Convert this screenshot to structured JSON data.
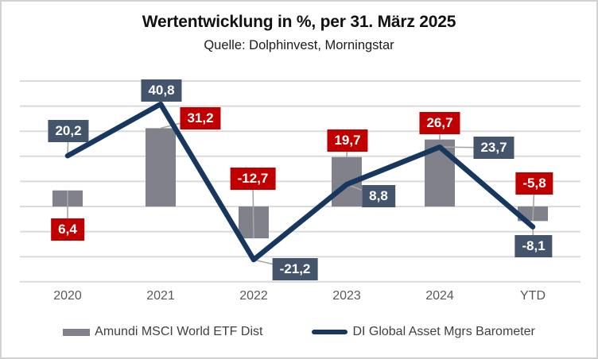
{
  "title": "Wertentwicklung in %, per 31. März 2025",
  "subtitle": "Quelle: Dolphinvest, Morningstar",
  "chart_data": {
    "type": "bar",
    "subtype": "bar-and-line-combo",
    "categories": [
      "2020",
      "2021",
      "2022",
      "2023",
      "2024",
      "YTD"
    ],
    "series": [
      {
        "name": "Amundi MSCI World ETF Dist",
        "type": "bar",
        "color": "#80818b",
        "label_bg": "#c00000",
        "values": [
          6.4,
          31.2,
          -12.7,
          19.7,
          26.7,
          -5.8
        ],
        "labels": [
          "6,4",
          "31,2",
          "-12,7",
          "19,7",
          "26,7",
          "-5,8"
        ]
      },
      {
        "name": "DI Global Asset Mgrs Barometer",
        "type": "line",
        "color": "#17375e",
        "label_bg": "#44546a",
        "values": [
          20.2,
          40.8,
          -21.2,
          8.8,
          23.7,
          -8.1
        ],
        "labels": [
          "20,2",
          "40,8",
          "-21,2",
          "8,8",
          "23,7",
          "-8,1"
        ]
      }
    ],
    "ylim": [
      -30,
      50
    ],
    "gridline_step": 10,
    "grid": "horizontal-only",
    "y_axis_labels_visible": false,
    "legend_position": "bottom",
    "decimal_separator": ","
  },
  "colors": {
    "bar_gray": "#80818b",
    "line_navy": "#17375e",
    "bar_label_red": "#c00000",
    "line_label_slate": "#44546a",
    "gridline": "#dadada",
    "leader": "#a6a6a6",
    "axis_text": "#595959",
    "frame": "#d2d2d2"
  }
}
